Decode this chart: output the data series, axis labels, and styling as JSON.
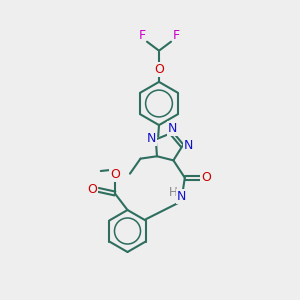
{
  "bg": "#eeeeee",
  "bc": "#2d6e5e",
  "nc": "#1111cc",
  "oc": "#cc0000",
  "fc": "#cc00cc",
  "hc": "#888888",
  "lw": 1.5,
  "fs": 9.0,
  "xlim": [
    0,
    10
  ],
  "ylim": [
    0,
    10
  ]
}
